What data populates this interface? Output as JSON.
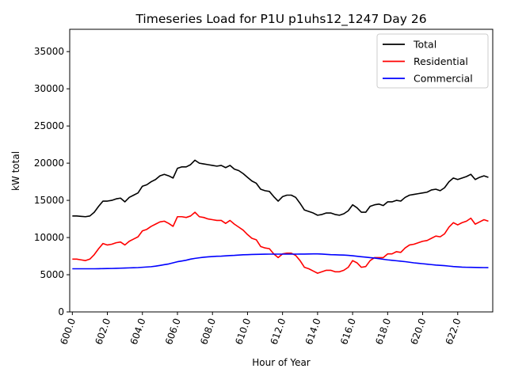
{
  "chart_data": {
    "type": "line",
    "title": "Timeseries Load for P1U p1uhs12_1247  Day 26",
    "xlabel": "Hour of Year",
    "ylabel": "kW total",
    "xlim": [
      599.85,
      624.0
    ],
    "ylim": [
      0,
      38000
    ],
    "x_ticks": [
      "600.0",
      "602.0",
      "604.0",
      "606.0",
      "608.0",
      "610.0",
      "612.0",
      "614.0",
      "616.0",
      "618.0",
      "620.0",
      "622.0"
    ],
    "y_ticks": [
      "0",
      "5000",
      "10000",
      "15000",
      "20000",
      "25000",
      "30000",
      "35000"
    ],
    "grid": false,
    "legend_position": "top-right",
    "x": [
      600.0,
      600.25,
      600.5,
      600.75,
      601.0,
      601.25,
      601.5,
      601.75,
      602.0,
      602.25,
      602.5,
      602.75,
      603.0,
      603.25,
      603.5,
      603.75,
      604.0,
      604.25,
      604.5,
      604.75,
      605.0,
      605.25,
      605.5,
      605.75,
      606.0,
      606.25,
      606.5,
      606.75,
      607.0,
      607.25,
      607.5,
      607.75,
      608.0,
      608.25,
      608.5,
      608.75,
      609.0,
      609.25,
      609.5,
      609.75,
      610.0,
      610.25,
      610.5,
      610.75,
      611.0,
      611.25,
      611.5,
      611.75,
      612.0,
      612.25,
      612.5,
      612.75,
      613.0,
      613.25,
      613.5,
      613.75,
      614.0,
      614.25,
      614.5,
      614.75,
      615.0,
      615.25,
      615.5,
      615.75,
      616.0,
      616.25,
      616.5,
      616.75,
      617.0,
      617.25,
      617.5,
      617.75,
      618.0,
      618.25,
      618.5,
      618.75,
      619.0,
      619.25,
      619.5,
      619.75,
      620.0,
      620.25,
      620.5,
      620.75,
      621.0,
      621.25,
      621.5,
      621.75,
      622.0,
      622.25,
      622.5,
      622.75,
      623.0,
      623.25,
      623.5,
      623.75
    ],
    "series": [
      {
        "name": "Total",
        "color": "#000000",
        "values": [
          12900,
          12900,
          12850,
          12800,
          12900,
          13400,
          14200,
          14900,
          14900,
          15000,
          15200,
          15300,
          14800,
          15400,
          15700,
          16000,
          16900,
          17100,
          17500,
          17800,
          18300,
          18500,
          18300,
          18000,
          19300,
          19500,
          19500,
          19800,
          20400,
          20000,
          19900,
          19800,
          19700,
          19600,
          19700,
          19400,
          19700,
          19200,
          19000,
          18600,
          18100,
          17600,
          17300,
          16500,
          16300,
          16200,
          15500,
          14900,
          15500,
          15700,
          15700,
          15400,
          14600,
          13700,
          13500,
          13300,
          13000,
          13100,
          13300,
          13300,
          13100,
          13000,
          13200,
          13600,
          14400,
          14000,
          13400,
          13400,
          14200,
          14400,
          14500,
          14300,
          14800,
          14800,
          15000,
          14900,
          15400,
          15700,
          15800,
          15900,
          16000,
          16100,
          16400,
          16500,
          16300,
          16700,
          17500,
          18000,
          17800,
          18000,
          18200,
          18500,
          17800,
          18100,
          18300,
          18100
        ]
      },
      {
        "name": "Residential",
        "color": "#ff0000",
        "values": [
          7100,
          7100,
          7000,
          6900,
          7100,
          7700,
          8500,
          9200,
          9000,
          9100,
          9300,
          9400,
          9000,
          9500,
          9800,
          10100,
          10900,
          11100,
          11500,
          11800,
          12100,
          12200,
          11900,
          11500,
          12800,
          12800,
          12700,
          12900,
          13400,
          12800,
          12700,
          12500,
          12400,
          12300,
          12300,
          11900,
          12300,
          11800,
          11400,
          11000,
          10400,
          9900,
          9700,
          8800,
          8600,
          8500,
          7800,
          7300,
          7800,
          7900,
          7900,
          7600,
          6900,
          6000,
          5800,
          5500,
          5200,
          5400,
          5600,
          5600,
          5400,
          5400,
          5600,
          6000,
          6900,
          6600,
          6000,
          6100,
          6900,
          7300,
          7300,
          7300,
          7800,
          7800,
          8100,
          8000,
          8600,
          9000,
          9100,
          9300,
          9500,
          9600,
          9900,
          10200,
          10100,
          10500,
          11400,
          12000,
          11700,
          12000,
          12200,
          12600,
          11800,
          12100,
          12400,
          12200
        ]
      },
      {
        "name": "Commercial",
        "color": "#0000ff",
        "values": [
          5800,
          5800,
          5800,
          5800,
          5800,
          5800,
          5810,
          5820,
          5830,
          5840,
          5860,
          5880,
          5900,
          5920,
          5940,
          5960,
          6000,
          6040,
          6080,
          6150,
          6250,
          6350,
          6450,
          6600,
          6750,
          6850,
          6950,
          7100,
          7200,
          7280,
          7350,
          7400,
          7440,
          7480,
          7500,
          7540,
          7580,
          7600,
          7640,
          7680,
          7700,
          7720,
          7740,
          7750,
          7760,
          7770,
          7770,
          7770,
          7770,
          7770,
          7770,
          7770,
          7780,
          7780,
          7790,
          7800,
          7800,
          7780,
          7740,
          7700,
          7680,
          7660,
          7640,
          7600,
          7550,
          7480,
          7420,
          7360,
          7300,
          7240,
          7160,
          7080,
          7000,
          6940,
          6880,
          6820,
          6760,
          6680,
          6600,
          6540,
          6480,
          6420,
          6360,
          6300,
          6260,
          6220,
          6160,
          6100,
          6060,
          6020,
          6000,
          5990,
          5980,
          5970,
          5960,
          5950
        ]
      }
    ]
  }
}
